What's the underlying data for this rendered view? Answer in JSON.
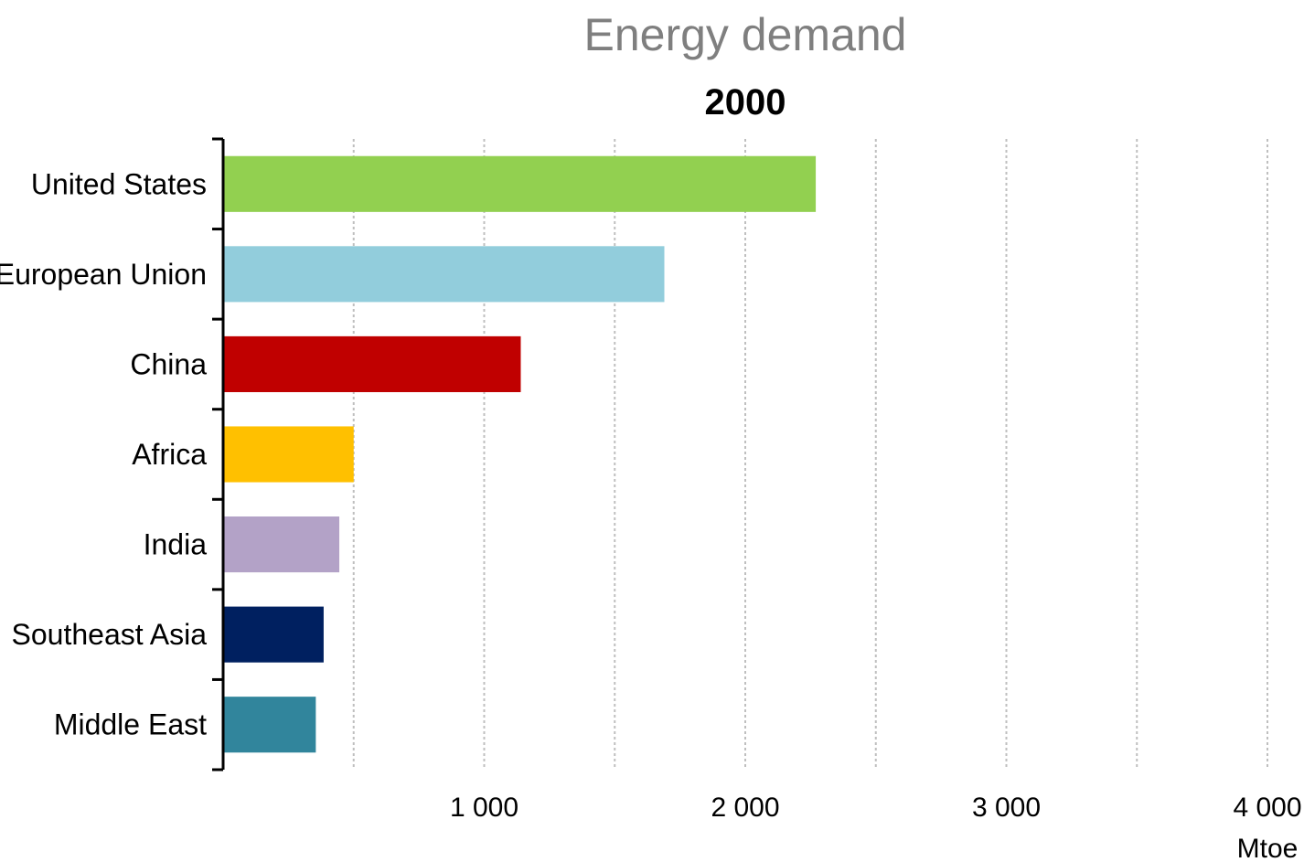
{
  "chart_data": {
    "type": "bar",
    "orientation": "horizontal",
    "title": "Energy demand",
    "subtitle": "2000",
    "categories": [
      "United States",
      "European Union",
      "China",
      "Africa",
      "India",
      "Southeast Asia",
      "Middle East"
    ],
    "values": [
      2270,
      1690,
      1140,
      500,
      445,
      385,
      355
    ],
    "colors": [
      "#92D050",
      "#92CDDC",
      "#C00000",
      "#FFC000",
      "#B3A2C7",
      "#002060",
      "#31859C"
    ],
    "xlim": [
      0,
      4000
    ],
    "x_ticks": [
      {
        "value": 1000,
        "label": "1 000"
      },
      {
        "value": 2000,
        "label": "2 000"
      },
      {
        "value": 3000,
        "label": "3 000"
      },
      {
        "value": 4000,
        "label": "4 000"
      }
    ],
    "x_gridlines": [
      500,
      1000,
      1500,
      2000,
      2500,
      3000,
      3500,
      4000
    ],
    "unit_label": "Mtoe",
    "grid": "vertical-dotted",
    "legend": "none"
  }
}
